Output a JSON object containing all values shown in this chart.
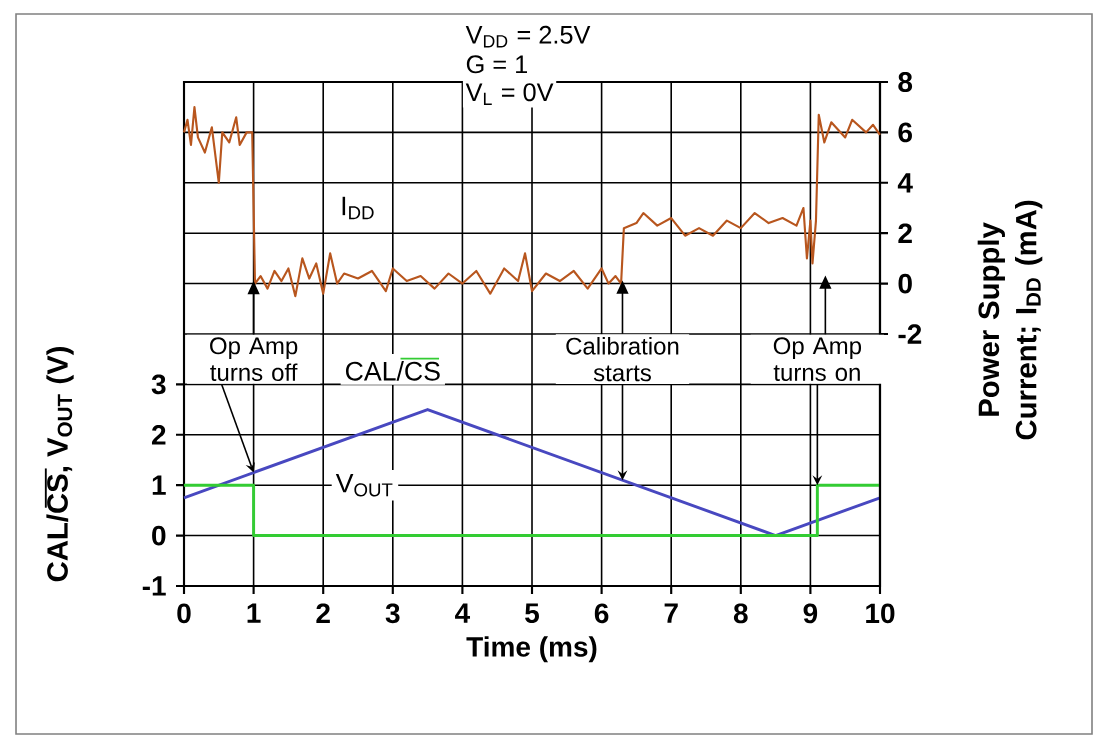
{
  "chart_data": {
    "type": "line",
    "xlabel": "Time (ms)",
    "ylabel": "CAL/CS, V$_{OUT}$ (V)",
    "y2label": "Power Supply Current; I$_{DD}$ (mA)",
    "xlim": [
      0,
      10
    ],
    "xticks": [
      0,
      1,
      2,
      3,
      4,
      5,
      6,
      7,
      8,
      9,
      10
    ],
    "ylim": [
      -1,
      9
    ],
    "yticks": [
      -1,
      0,
      1,
      2,
      3
    ],
    "y2lim": [
      -12,
      8
    ],
    "y2ticks": [
      -2,
      0,
      2,
      4,
      6,
      8
    ],
    "grid": true,
    "annotations": [
      "V$_{DD}$ = 2.5V",
      "G = 1",
      "V$_{L}$ = 0V",
      {
        "text": "Op Amp turns off",
        "x": 1,
        "y": 1.25
      },
      {
        "text": "Calibration starts",
        "x": 6.3,
        "y": 1.1
      },
      {
        "text": "Op Amp turns on",
        "x": 9.1,
        "y": 1
      }
    ],
    "series": [
      {
        "name": "I$_{DD}$",
        "color": "#b8561e",
        "axis": "y2",
        "x": [
          0,
          0.05,
          0.1,
          0.15,
          0.2,
          0.3,
          0.4,
          0.5,
          0.55,
          0.65,
          0.75,
          0.8,
          0.9,
          0.98,
          1.02,
          1.1,
          1.2,
          1.3,
          1.4,
          1.5,
          1.6,
          1.7,
          1.8,
          1.9,
          2.0,
          2.1,
          2.2,
          2.3,
          2.5,
          2.7,
          2.9,
          3.0,
          3.2,
          3.4,
          3.6,
          3.8,
          4.0,
          4.2,
          4.4,
          4.6,
          4.8,
          4.9,
          5.0,
          5.2,
          5.4,
          5.6,
          5.8,
          6.0,
          6.1,
          6.2,
          6.28,
          6.32,
          6.5,
          6.6,
          6.8,
          7.0,
          7.2,
          7.4,
          7.6,
          7.8,
          8.0,
          8.2,
          8.4,
          8.6,
          8.8,
          8.9,
          8.95,
          9.0,
          9.03,
          9.08,
          9.12,
          9.2,
          9.3,
          9.5,
          9.6,
          9.8,
          9.9,
          10
        ],
        "values": [
          6.0,
          6.5,
          5.5,
          7.0,
          5.8,
          5.2,
          6.2,
          4.0,
          6.0,
          5.6,
          6.6,
          5.5,
          6.0,
          6.0,
          0.0,
          0.3,
          -0.2,
          0.5,
          0.1,
          0.6,
          -0.5,
          1.0,
          0.2,
          0.8,
          -0.4,
          1.2,
          0.0,
          0.4,
          0.2,
          0.5,
          -0.3,
          0.6,
          0.1,
          0.3,
          -0.2,
          0.4,
          0.0,
          0.5,
          -0.4,
          0.6,
          0.1,
          1.2,
          -0.3,
          0.4,
          0.1,
          0.5,
          -0.2,
          0.6,
          0.0,
          0.3,
          0.0,
          2.2,
          2.4,
          2.8,
          2.3,
          2.6,
          1.9,
          2.2,
          1.9,
          2.5,
          2.2,
          2.8,
          2.4,
          2.6,
          2.3,
          3.0,
          1.0,
          2.5,
          0.8,
          2.5,
          6.7,
          5.6,
          6.4,
          5.8,
          6.5,
          6.0,
          6.3,
          5.9
        ]
      },
      {
        "name": "V$_{OUT}$",
        "color": "#4848c0",
        "x": [
          0,
          3.5,
          8.5,
          10
        ],
        "values": [
          0.75,
          2.5,
          0,
          0.75
        ]
      },
      {
        "name": "CAL/CS",
        "color": "#33cc33",
        "type": "step",
        "x": [
          0,
          1,
          9.1,
          10
        ],
        "values": [
          1,
          0,
          1,
          1
        ]
      }
    ]
  }
}
